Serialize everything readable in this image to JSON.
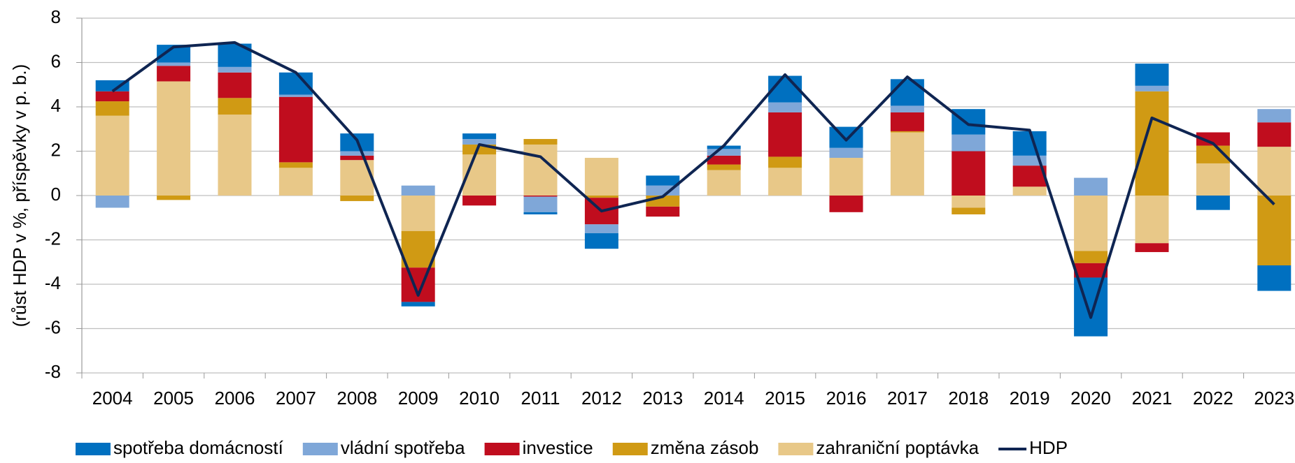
{
  "chart_data": {
    "type": "bar",
    "stacked": true,
    "y_label": "(růst HDP v %, příspěvky v p. b.)",
    "categories": [
      "2004",
      "2005",
      "2006",
      "2007",
      "2008",
      "2009",
      "2010",
      "2011",
      "2012",
      "2013",
      "2014",
      "2015",
      "2016",
      "2017",
      "2018",
      "2019",
      "2020",
      "2021",
      "2022",
      "2023"
    ],
    "series": [
      {
        "name": "spotřeba domácností",
        "color": "#0070c0",
        "values": [
          0.5,
          0.8,
          1.05,
          1.0,
          0.8,
          -0.2,
          0.25,
          -0.1,
          -0.7,
          0.45,
          0.15,
          1.2,
          0.95,
          1.2,
          1.15,
          1.1,
          -2.65,
          1.0,
          -0.65,
          -1.15
        ]
      },
      {
        "name": "vládní spotřeba",
        "color": "#7fa7d8",
        "values": [
          -0.55,
          0.15,
          0.25,
          0.1,
          0.2,
          0.45,
          0.25,
          -0.7,
          -0.4,
          0.45,
          0.3,
          0.45,
          0.45,
          0.3,
          0.75,
          0.45,
          0.8,
          0.25,
          0,
          0.6
        ]
      },
      {
        "name": "investice",
        "color": "#c00d1e",
        "values": [
          0.45,
          0.7,
          1.15,
          2.95,
          0.2,
          -1.55,
          -0.45,
          -0.05,
          -1.2,
          -0.45,
          0.4,
          2.0,
          -0.75,
          0.85,
          2.0,
          0.95,
          -0.65,
          -0.4,
          0.6,
          1.1
        ]
      },
      {
        "name": "změna zásob",
        "color": "#d09a14",
        "values": [
          0.65,
          -0.2,
          0.75,
          0.25,
          -0.25,
          -1.65,
          0.45,
          0.25,
          -0.1,
          -0.5,
          0.25,
          0.5,
          0,
          0.05,
          -0.3,
          0,
          -0.55,
          4.7,
          0.8,
          -3.15
        ]
      },
      {
        "name": "zahraniční poptávka",
        "color": "#e8c888",
        "values": [
          3.6,
          5.15,
          3.65,
          1.25,
          1.6,
          -1.6,
          1.85,
          2.3,
          1.7,
          0,
          1.15,
          1.25,
          1.7,
          2.85,
          -0.55,
          0.4,
          -2.5,
          -2.15,
          1.45,
          2.2
        ]
      },
      {
        "name": "HDP",
        "type": "line",
        "color": "#0f2552",
        "values": [
          4.7,
          6.7,
          6.9,
          5.55,
          2.5,
          -4.5,
          2.3,
          1.75,
          -0.7,
          -0.05,
          2.25,
          5.45,
          2.5,
          5.35,
          3.2,
          2.95,
          -5.5,
          3.5,
          2.35,
          -0.4
        ]
      }
    ],
    "ylim": [
      -8,
      8
    ],
    "yticks": [
      -8,
      -6,
      -4,
      -2,
      0,
      2,
      4,
      6,
      8
    ],
    "grid": true,
    "legend": "bottom"
  }
}
